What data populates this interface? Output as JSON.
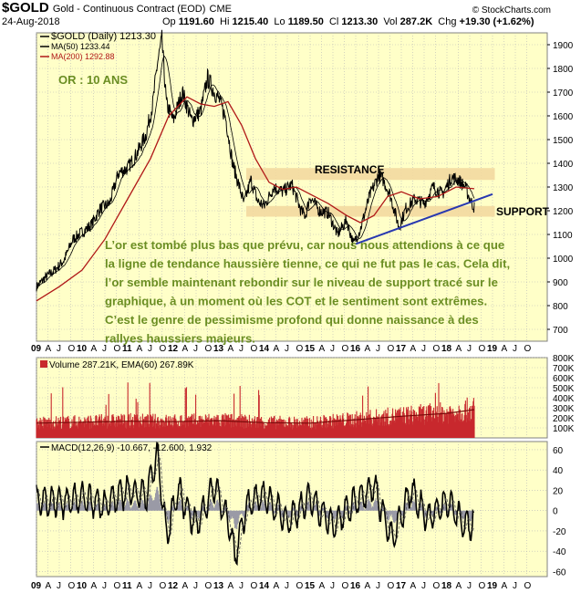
{
  "header": {
    "symbol": "$GOLD",
    "name": "Gold - Continuous Contract (EOD)",
    "exchange": "CME",
    "date": "24-Aug-2018",
    "open_label": "Op",
    "open": "1191.60",
    "high_label": "Hi",
    "high": "1215.40",
    "low_label": "Lo",
    "low": "1189.50",
    "close_label": "Cl",
    "close": "1213.30",
    "volume_label": "Vol",
    "volume": "287.2K",
    "change_label": "Chg",
    "change": "+19.30 (+1.62%)",
    "credit": "© StockCharts.com"
  },
  "colors": {
    "panel_bg": "#ffffc8",
    "band": "#f3d9a0",
    "price": "#000000",
    "ma200": "#b01818",
    "trendline": "#2838b0",
    "annotation_text": "#6b8e23",
    "volume_bar": "#c8282d",
    "volume_ema": "#7a0a0a"
  },
  "chart_data": [
    {
      "type": "line",
      "panel": "price",
      "legend": [
        {
          "name": "$GOLD (Daily)",
          "value": "1213.30"
        },
        {
          "name": "MA(50)",
          "value": "1233.44"
        },
        {
          "name": "MA(200)",
          "value": "1292.88"
        }
      ],
      "y_ticks": [
        700,
        800,
        900,
        1000,
        1100,
        1200,
        1300,
        1400,
        1500,
        1600,
        1700,
        1800,
        1900
      ],
      "ylim": [
        650,
        1950
      ],
      "xlim": [
        2009.0,
        2020.2
      ],
      "x_ticks": [
        "09",
        "A",
        "J",
        "O",
        "10",
        "A",
        "J",
        "O",
        "11",
        "A",
        "J",
        "O",
        "12",
        "A",
        "J",
        "O",
        "13",
        "A",
        "J",
        "O",
        "14",
        "A",
        "J",
        "O",
        "15",
        "A",
        "J",
        "O",
        "16",
        "A",
        "J",
        "O",
        "17",
        "A",
        "J",
        "O",
        "18",
        "A",
        "J",
        "O",
        "19",
        "A",
        "J",
        "O"
      ],
      "series": [
        {
          "name": "$GOLD (Daily)",
          "x": [
            2009.0,
            2009.2,
            2009.4,
            2009.6,
            2009.8,
            2010.0,
            2010.2,
            2010.4,
            2010.6,
            2010.8,
            2011.0,
            2011.2,
            2011.4,
            2011.55,
            2011.65,
            2011.75,
            2011.85,
            2012.0,
            2012.2,
            2012.4,
            2012.6,
            2012.75,
            2012.9,
            2013.0,
            2013.15,
            2013.3,
            2013.45,
            2013.55,
            2013.7,
            2013.85,
            2014.0,
            2014.2,
            2014.4,
            2014.6,
            2014.8,
            2014.9,
            2015.0,
            2015.2,
            2015.4,
            2015.6,
            2015.8,
            2015.95,
            2016.1,
            2016.3,
            2016.5,
            2016.6,
            2016.75,
            2016.95,
            2017.1,
            2017.3,
            2017.5,
            2017.7,
            2017.9,
            2018.1,
            2018.25,
            2018.4,
            2018.5,
            2018.6
          ],
          "values": [
            880,
            920,
            950,
            990,
            1080,
            1110,
            1140,
            1210,
            1230,
            1360,
            1380,
            1440,
            1520,
            1650,
            1820,
            1920,
            1650,
            1580,
            1700,
            1580,
            1620,
            1760,
            1700,
            1670,
            1590,
            1400,
            1300,
            1230,
            1330,
            1240,
            1220,
            1300,
            1280,
            1310,
            1200,
            1180,
            1260,
            1200,
            1190,
            1100,
            1160,
            1060,
            1120,
            1260,
            1350,
            1330,
            1270,
            1130,
            1210,
            1250,
            1230,
            1300,
            1270,
            1340,
            1330,
            1300,
            1250,
            1213.3
          ]
        },
        {
          "name": "MA(200)",
          "x": [
            2009.0,
            2009.5,
            2010.0,
            2010.5,
            2011.0,
            2011.5,
            2011.9,
            2012.3,
            2012.6,
            2012.9,
            2013.2,
            2013.5,
            2013.8,
            2014.1,
            2014.4,
            2014.7,
            2015.0,
            2015.4,
            2015.8,
            2016.1,
            2016.4,
            2016.7,
            2017.0,
            2017.4,
            2017.8,
            2018.2,
            2018.6
          ],
          "values": [
            820,
            880,
            950,
            1080,
            1250,
            1420,
            1600,
            1680,
            1650,
            1640,
            1660,
            1560,
            1420,
            1320,
            1290,
            1300,
            1270,
            1230,
            1180,
            1150,
            1180,
            1260,
            1280,
            1250,
            1260,
            1300,
            1292.88
          ]
        }
      ],
      "annotations": {
        "label_top_left": "OR : 10 ANS",
        "resistance_label": "RESISTANCE",
        "support_label": "SUPPORT",
        "resistance_band": [
          1330,
          1380
        ],
        "support_band": [
          1175,
          1220
        ],
        "trendline": {
          "x": [
            2016.0,
            2019.0
          ],
          "values": [
            1060,
            1270
          ]
        },
        "commentary": [
          "L’or est tombé plus bas que prévu, car nous nous attendions à ce que",
          "la ligne de tendance haussière tienne, ce qui ne fut pas le cas. Cela dit,",
          "l’or semble maintenant rebondir sur le niveau de support tracé sur le",
          "graphique, à un moment où les COT et le sentiment sont extrêmes.",
          "C’est le genre de pessimisme profond qui donne naissance à des",
          "rallyes haussiers majeurs."
        ]
      }
    },
    {
      "type": "bar",
      "panel": "volume",
      "legend": [
        {
          "name": "Volume",
          "value": "287.21K"
        },
        {
          "name": "EMA(60)",
          "value": "267.89K"
        }
      ],
      "y_ticks": [
        "100K",
        "200K",
        "300K",
        "400K",
        "500K",
        "600K",
        "700K",
        "800K"
      ],
      "ylim": [
        0,
        800
      ],
      "x": [
        2009.0,
        2010.0,
        2011.0,
        2012.0,
        2013.0,
        2014.0,
        2015.0,
        2016.0,
        2017.0,
        2018.0,
        2018.6
      ],
      "values": [
        150,
        160,
        170,
        165,
        175,
        155,
        150,
        185,
        220,
        250,
        287.21
      ]
    },
    {
      "type": "line",
      "panel": "macd",
      "legend_label": "MACD(12,26,9)",
      "legend_values": [
        "-10.667",
        "-12.600",
        "1.932"
      ],
      "y_ticks": [
        -60,
        -40,
        -20,
        0,
        20,
        40,
        60
      ],
      "ylim": [
        -65,
        68
      ],
      "series": [
        {
          "name": "MACD(12,26,9)",
          "x": [
            2009.0,
            2009.5,
            2010.0,
            2010.5,
            2011.0,
            2011.4,
            2011.65,
            2011.85,
            2012.1,
            2012.5,
            2012.9,
            2013.2,
            2013.35,
            2013.6,
            2014.0,
            2014.5,
            2015.0,
            2015.5,
            2016.0,
            2016.4,
            2016.8,
            2017.2,
            2017.6,
            2018.0,
            2018.4,
            2018.6
          ],
          "values": [
            10,
            8,
            12,
            6,
            20,
            15,
            55,
            -25,
            20,
            -15,
            25,
            -10,
            -45,
            5,
            15,
            -10,
            12,
            -15,
            10,
            25,
            -30,
            20,
            -8,
            10,
            -15,
            -10.667
          ]
        }
      ]
    }
  ]
}
